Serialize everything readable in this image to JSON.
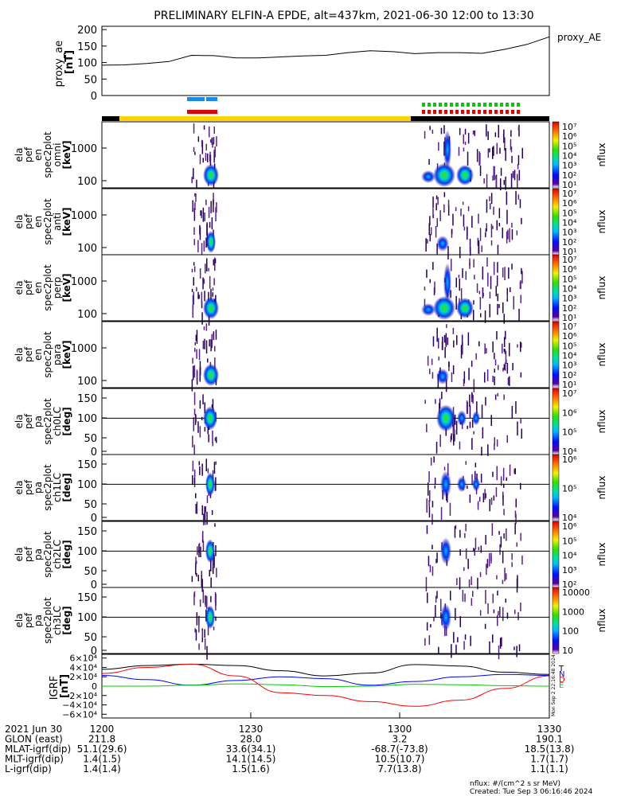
{
  "title": "PRELIMINARY ELFIN-A EPDE, alt=437km, 2021-06-30 12:00 to 13:30",
  "chart_data": [
    {
      "type": "line",
      "ylabel": [
        "proxy_ae",
        "[nT]"
      ],
      "legend": "proxy_AE",
      "ylim": [
        0,
        210
      ],
      "yticks": [
        "200",
        "150",
        "100",
        "50",
        "0"
      ],
      "ytick_values": [
        200,
        150,
        100,
        50,
        0
      ],
      "x": [
        0,
        0.05,
        0.1,
        0.15,
        0.2,
        0.25,
        0.3,
        0.35,
        0.4,
        0.45,
        0.5,
        0.55,
        0.6,
        0.65,
        0.7,
        0.75,
        0.8,
        0.85,
        0.9,
        0.95,
        1.0
      ],
      "y": [
        92,
        93,
        97,
        103,
        122,
        121,
        114,
        114,
        117,
        120,
        122,
        130,
        136,
        133,
        127,
        130,
        130,
        128,
        140,
        155,
        178
      ]
    },
    {
      "type": "heatmap",
      "panels": [
        {
          "ylabel": [
            "ela",
            "pef",
            "en",
            "spec2plot",
            "omni",
            "[keV]"
          ],
          "yticks": [
            "1000",
            "100"
          ],
          "scale": "log",
          "colorbar": {
            "label": "nflux",
            "ticks": [
              "10⁷",
              "10⁶",
              "10⁵",
              "10⁴",
              "10³",
              "10²",
              "10¹"
            ]
          }
        },
        {
          "ylabel": [
            "ela",
            "pef",
            "en",
            "spec2plot",
            "anti",
            "[keV]"
          ],
          "yticks": [
            "1000",
            "100"
          ],
          "scale": "log",
          "colorbar": {
            "label": "nflux",
            "ticks": [
              "10⁷",
              "10⁶",
              "10⁵",
              "10⁴",
              "10³",
              "10²",
              "10¹"
            ]
          }
        },
        {
          "ylabel": [
            "ela",
            "pef",
            "en",
            "spec2plot",
            "perp",
            "[keV]"
          ],
          "yticks": [
            "1000",
            "100"
          ],
          "scale": "log",
          "colorbar": {
            "label": "nflux",
            "ticks": [
              "10⁷",
              "10⁶",
              "10⁵",
              "10⁴",
              "10³",
              "10²",
              "10¹"
            ]
          }
        },
        {
          "ylabel": [
            "ela",
            "pef",
            "en",
            "spec2plot",
            "para",
            "[keV]"
          ],
          "yticks": [
            "1000",
            "100"
          ],
          "scale": "log",
          "colorbar": {
            "label": "nflux",
            "ticks": [
              "10⁷",
              "10⁶",
              "10⁵",
              "10⁴",
              "10³",
              "10²",
              "10¹"
            ]
          }
        },
        {
          "ylabel": [
            "ela",
            "pef",
            "pa",
            "spec2plot",
            "ch0LC",
            "[deg]"
          ],
          "yticks": [
            "150",
            "100",
            "50",
            "0"
          ],
          "colorbar": {
            "label": "nflux",
            "ticks": [
              "10⁷",
              "10⁶",
              "10⁵",
              "10⁴"
            ]
          }
        },
        {
          "ylabel": [
            "ela",
            "pef",
            "pa",
            "spec2plot",
            "ch1LC",
            "[deg]"
          ],
          "yticks": [
            "150",
            "100",
            "50",
            "0"
          ],
          "colorbar": {
            "label": "nflux",
            "ticks": [
              "10⁶",
              "10⁵",
              "10⁴"
            ]
          }
        },
        {
          "ylabel": [
            "ela",
            "pef",
            "pa",
            "spec2plot",
            "ch2LC",
            "[deg]"
          ],
          "yticks": [
            "150",
            "100",
            "50",
            "0"
          ],
          "colorbar": {
            "label": "nflux",
            "ticks": [
              "10⁶",
              "10⁵",
              "10⁴",
              "10³",
              "10²"
            ]
          }
        },
        {
          "ylabel": [
            "ela",
            "pef",
            "pa",
            "spec2plot",
            "ch3LC",
            "[deg]"
          ],
          "yticks": [
            "150",
            "100",
            "50",
            "0"
          ],
          "colorbar": {
            "label": "nflux",
            "ticks": [
              "10000",
              "1000",
              "100",
              "10"
            ]
          }
        }
      ]
    },
    {
      "type": "line",
      "ylabel": [
        "IGRF",
        "[nT]"
      ],
      "yticks": [
        "6×10⁴",
        "4×10⁴",
        "2×10⁴",
        "0",
        "−2×10⁴",
        "−4×10⁴",
        "−6×10⁴"
      ],
      "ytick_values": [
        60000,
        40000,
        20000,
        0,
        -20000,
        -40000,
        -60000
      ],
      "ylim": [
        -68000,
        68000
      ],
      "legend": [
        "T",
        "N",
        "D",
        "E"
      ],
      "side_label": "Mon Sep 2 22:16:48 2024",
      "series": [
        {
          "color": "#000000",
          "x": [
            0,
            0.1,
            0.2,
            0.3,
            0.4,
            0.5,
            0.6,
            0.7,
            0.8,
            0.9,
            1.0
          ],
          "y": [
            36000,
            44000,
            47000,
            44000,
            33000,
            22000,
            28000,
            46000,
            43000,
            30000,
            25000
          ]
        },
        {
          "color": "#0000ff",
          "x": [
            0,
            0.1,
            0.2,
            0.3,
            0.4,
            0.5,
            0.6,
            0.7,
            0.8,
            0.9,
            1.0
          ],
          "y": [
            23000,
            14000,
            2000,
            12000,
            20000,
            16000,
            2000,
            10000,
            20000,
            25000,
            23000
          ]
        },
        {
          "color": "#ff0000",
          "x": [
            0,
            0.1,
            0.2,
            0.3,
            0.4,
            0.5,
            0.6,
            0.7,
            0.8,
            0.9,
            1.0
          ],
          "y": [
            27000,
            40000,
            47000,
            22000,
            -14000,
            -20000,
            -33000,
            -43000,
            -30000,
            -5000,
            22000
          ]
        },
        {
          "color": "#00cc00",
          "x": [
            0,
            0.1,
            0.2,
            0.3,
            0.4,
            0.5,
            0.6,
            0.7,
            0.8,
            0.9,
            1.0
          ],
          "y": [
            0,
            0,
            2000,
            5000,
            3000,
            -1000,
            0,
            4000,
            3000,
            1000,
            0
          ]
        }
      ]
    }
  ],
  "bars": {
    "colors": {
      "yellow": "#ffd400",
      "black": "#000000",
      "blue": "#1e88e5",
      "red": "#e00000",
      "green": "#00cc00"
    }
  },
  "xaxis": {
    "ticks": [
      "1200",
      "1230",
      "1300",
      "1330"
    ],
    "rows": [
      {
        "label": "2021 Jun 30",
        "values": [
          "1200",
          "1230",
          "1300",
          "1330"
        ]
      },
      {
        "label": "GLON (east)",
        "values": [
          "211.8",
          "28.0",
          "3.2",
          "190.1"
        ]
      },
      {
        "label": "MLAT-igrf(dip)",
        "values": [
          "51.1(29.6)",
          "33.6(34.1)",
          "-68.7(-73.8)",
          "18.5(13.8)"
        ]
      },
      {
        "label": "MLT-igrf(dip)",
        "values": [
          "1.4(1.5)",
          "14.1(14.5)",
          "10.5(10.7)",
          "1.7(1.7)"
        ]
      },
      {
        "label": "L-igrf(dip)",
        "values": [
          "1.4(1.4)",
          "1.5(1.6)",
          "7.7(13.8)",
          "1.1(1.1)"
        ]
      }
    ]
  },
  "footer": {
    "units": "nflux: #/(cm^2 s sr MeV)",
    "created": "Created: Tue Sep  3 06:16:46 2024"
  }
}
